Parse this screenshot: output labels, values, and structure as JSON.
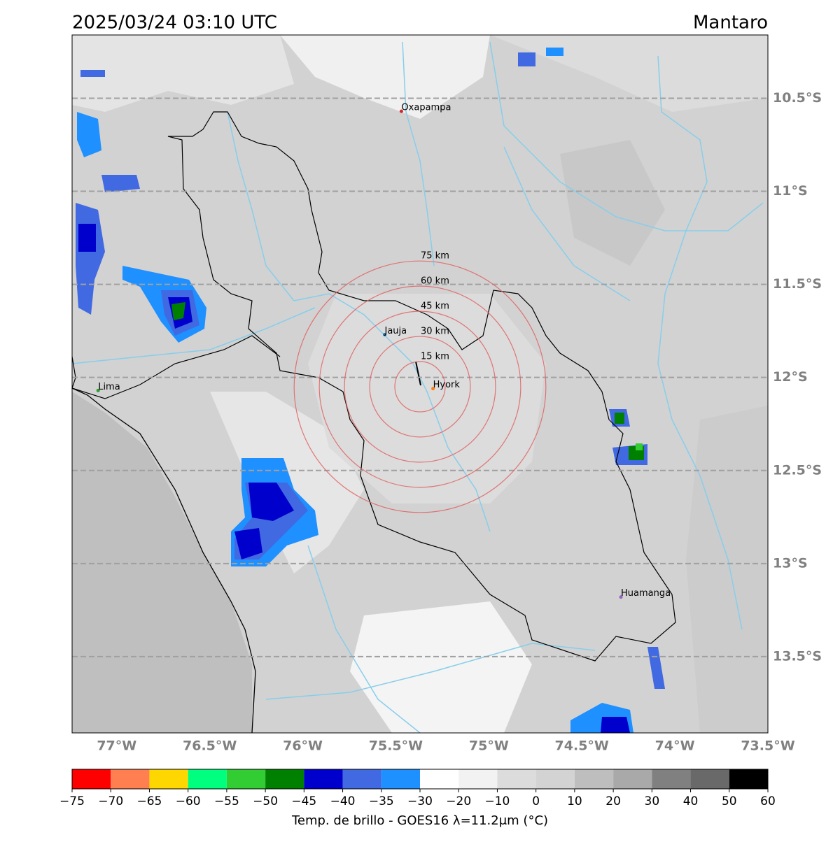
{
  "header": {
    "title": "2025/03/24 03:10 UTC",
    "region": "Mantaro"
  },
  "map": {
    "lonlim": [
      -77.24,
      -73.5
    ],
    "latlim": [
      -13.91,
      -10.16
    ],
    "lat_lines": [
      {
        "value": -10.5,
        "label": "10.5°S"
      },
      {
        "value": -11,
        "label": "11°S"
      },
      {
        "value": -11.5,
        "label": "11.5°S"
      },
      {
        "value": -12,
        "label": "12°S"
      },
      {
        "value": -12.5,
        "label": "12.5°S"
      },
      {
        "value": -13,
        "label": "13°S"
      },
      {
        "value": -13.5,
        "label": "13.5°S"
      }
    ],
    "lon_ticks": [
      {
        "value": -77,
        "label": "77°W"
      },
      {
        "value": -76.5,
        "label": "76.5°W"
      },
      {
        "value": -76,
        "label": "76°W"
      },
      {
        "value": -75.5,
        "label": "75.5°W"
      },
      {
        "value": -75,
        "label": "75°W"
      },
      {
        "value": -74.5,
        "label": "74.5°W"
      },
      {
        "value": -74,
        "label": "74°W"
      },
      {
        "value": -73.5,
        "label": "73.5°W"
      }
    ],
    "cities": [
      {
        "name": "Oxapampa",
        "lon": -75.47,
        "lat": -10.57,
        "color": "#d62728"
      },
      {
        "name": "Jauja",
        "lon": -75.56,
        "lat": -11.77,
        "color": "#1f77b4"
      },
      {
        "name": "Hyork",
        "lon": -75.3,
        "lat": -12.06,
        "color": "#ff7f0e"
      },
      {
        "name": "Lima",
        "lon": -77.1,
        "lat": -12.07,
        "color": "#2ca02c"
      },
      {
        "name": "Huamanga",
        "lon": -74.29,
        "lat": -13.18,
        "color": "#9467bd"
      }
    ],
    "rings": {
      "center_lon": -75.37,
      "center_lat": -12.05,
      "color": "#e06060",
      "radii": [
        {
          "value": 15,
          "label": "15 km"
        },
        {
          "value": 30,
          "label": "30 km"
        },
        {
          "value": 45,
          "label": "45 km"
        },
        {
          "value": 60,
          "label": "60 km"
        },
        {
          "value": 75,
          "label": "75 km"
        }
      ]
    }
  },
  "colorbar": {
    "label": "Temp. de brillo - GOES16 λ=11.2μm (°C)",
    "ticks": [
      {
        "value": -75,
        "label": "−75"
      },
      {
        "value": -70,
        "label": "−70"
      },
      {
        "value": -65,
        "label": "−65"
      },
      {
        "value": -60,
        "label": "−60"
      },
      {
        "value": -55,
        "label": "−55"
      },
      {
        "value": -50,
        "label": "−50"
      },
      {
        "value": -45,
        "label": "−45"
      },
      {
        "value": -40,
        "label": "−40"
      },
      {
        "value": -35,
        "label": "−35"
      },
      {
        "value": -30,
        "label": "−30"
      },
      {
        "value": -20,
        "label": "−20"
      },
      {
        "value": -10,
        "label": "−10"
      },
      0,
      10,
      20,
      30,
      40,
      50,
      60
    ],
    "colors": [
      "#ff0000",
      "#ff7f50",
      "#ffd700",
      "#00ff7f",
      "#32cd32",
      "#008000",
      "#0000cd",
      "#4169e1",
      "#1e90ff",
      "#ffffff",
      "#f2f2f2",
      "#dcdcdc",
      "#d3d3d3",
      "#bebebe",
      "#a9a9a9",
      "#808080",
      "#696969",
      "#000000"
    ]
  }
}
